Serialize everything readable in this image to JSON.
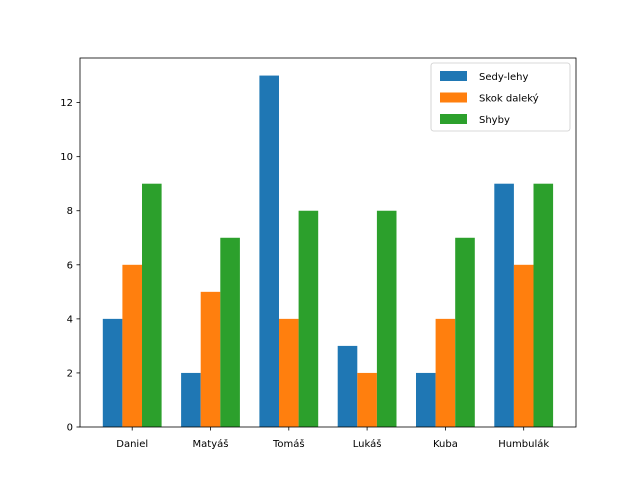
{
  "chart_data": {
    "type": "bar",
    "categories": [
      "Daniel",
      "Matyáš",
      "Tomáš",
      "Lukáš",
      "Kuba",
      "Humbulák"
    ],
    "series": [
      {
        "name": "Sedy-lehy",
        "color": "#1f77b4",
        "values": [
          4,
          2,
          13,
          3,
          2,
          9
        ]
      },
      {
        "name": "Skok daleký",
        "color": "#ff7f0e",
        "values": [
          6,
          5,
          4,
          2,
          4,
          6
        ]
      },
      {
        "name": "Shyby",
        "color": "#2ca02c",
        "values": [
          9,
          7,
          8,
          8,
          7,
          9
        ]
      }
    ],
    "title": "",
    "xlabel": "",
    "ylabel": "",
    "ylim": [
      0,
      13.65
    ],
    "yticks": [
      0,
      2,
      4,
      6,
      8,
      10,
      12
    ],
    "grid": false,
    "legend_position": "top-right"
  }
}
